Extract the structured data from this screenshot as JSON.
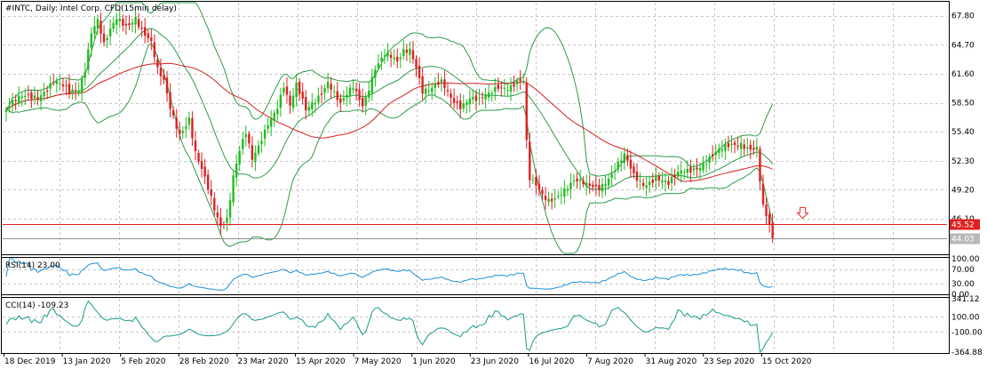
{
  "chart_data": {
    "type": "candlestick",
    "title": "#INTC, Daily:  Intel Corp. CFD(15min delay)",
    "price": {
      "ylim": [
        42.4,
        69.2
      ],
      "y_ticks": [
        "67.80",
        "64.70",
        "61.60",
        "58.50",
        "55.40",
        "52.30",
        "49.20",
        "46.10"
      ],
      "current_bid_label": "45.52",
      "current_price_label": "44.03",
      "current_bid": 45.52,
      "current_price": 44.03,
      "indicators": [
        "Moving Average (red)",
        "Bollinger Bands (green)"
      ],
      "arrow": "sell arrow near 48.0"
    },
    "x_labels": [
      "18 Dec 2019",
      "13 Jan 2020",
      "5 Feb 2020",
      "28 Feb 2020",
      "23 Mar 2020",
      "15 Apr 2020",
      "7 May 2020",
      "1 Jun 2020",
      "23 Jun 2020",
      "16 Jul 2020",
      "7 Aug 2020",
      "31 Aug 2020",
      "23 Sep 2020",
      "15 Oct 2020"
    ],
    "rsi": {
      "label": "RSI(14) 23.00",
      "ylim": [
        0,
        100
      ],
      "ticks": [
        "100.00",
        "70.00",
        "30.00",
        "0.00"
      ],
      "levels": [
        70,
        30
      ],
      "last": 23.0
    },
    "cci": {
      "label": "CCI(14) -109.23",
      "ylim": [
        -364.88,
        341.12
      ],
      "ticks": [
        "341.12",
        "100.00",
        "-100.00",
        "-364.88"
      ],
      "levels": [
        100,
        -100
      ],
      "last": -109.23
    },
    "key_closes": [
      [
        0,
        57.8
      ],
      [
        6,
        59.0
      ],
      [
        10,
        59.5
      ],
      [
        15,
        60.8
      ],
      [
        20,
        59.3
      ],
      [
        23,
        60.0
      ],
      [
        25,
        62.5
      ],
      [
        27,
        66.5
      ],
      [
        29,
        67.5
      ],
      [
        31,
        64.5
      ],
      [
        35,
        67.2
      ],
      [
        38,
        66.8
      ],
      [
        41,
        68.0
      ],
      [
        43,
        66.5
      ],
      [
        46,
        64.7
      ],
      [
        48,
        61.6
      ],
      [
        50,
        60.5
      ],
      [
        52,
        58.0
      ],
      [
        55,
        55.5
      ],
      [
        58,
        57.0
      ],
      [
        60,
        53.0
      ],
      [
        62,
        51.0
      ],
      [
        64,
        49.0
      ],
      [
        66,
        47.0
      ],
      [
        68,
        45.5
      ],
      [
        70,
        46.5
      ],
      [
        72,
        51.0
      ],
      [
        74,
        53.5
      ],
      [
        76,
        55.0
      ],
      [
        78,
        52.0
      ],
      [
        80,
        53.5
      ],
      [
        83,
        56.5
      ],
      [
        86,
        58.5
      ],
      [
        88,
        60.5
      ],
      [
        90,
        58.0
      ],
      [
        92,
        60.0
      ],
      [
        95,
        57.5
      ],
      [
        98,
        59.0
      ],
      [
        102,
        61.0
      ],
      [
        106,
        58.0
      ],
      [
        110,
        60.0
      ],
      [
        113,
        58.5
      ],
      [
        117,
        62.5
      ],
      [
        120,
        63.5
      ],
      [
        124,
        62.5
      ],
      [
        126,
        64.0
      ],
      [
        128,
        64.5
      ],
      [
        130,
        62.8
      ],
      [
        132,
        60.0
      ],
      [
        135,
        59.8
      ],
      [
        138,
        60.3
      ],
      [
        141,
        59.0
      ],
      [
        144,
        58.5
      ],
      [
        147,
        59.3
      ],
      [
        150,
        58.5
      ],
      [
        153,
        59.0
      ],
      [
        156,
        60.2
      ],
      [
        159,
        60.5
      ],
      [
        162,
        61.0
      ],
      [
        164,
        60.8
      ],
      [
        165,
        54.0
      ],
      [
        166,
        50.0
      ],
      [
        168,
        49.3
      ],
      [
        170,
        48.5
      ],
      [
        172,
        48.3
      ],
      [
        176,
        49.2
      ],
      [
        180,
        49.8
      ],
      [
        184,
        49.5
      ],
      [
        188,
        49.8
      ],
      [
        192,
        51.0
      ],
      [
        196,
        52.5
      ],
      [
        199,
        50.5
      ],
      [
        202,
        50.0
      ],
      [
        206,
        50.8
      ],
      [
        210,
        49.5
      ],
      [
        214,
        51.0
      ],
      [
        218,
        51.8
      ],
      [
        222,
        52.3
      ],
      [
        226,
        53.0
      ],
      [
        230,
        54.0
      ],
      [
        233,
        54.5
      ],
      [
        236,
        53.8
      ],
      [
        238,
        53.5
      ],
      [
        239,
        50.0
      ],
      [
        240,
        47.0
      ],
      [
        241,
        46.0
      ],
      [
        242,
        45.0
      ],
      [
        243,
        44.03
      ]
    ]
  }
}
